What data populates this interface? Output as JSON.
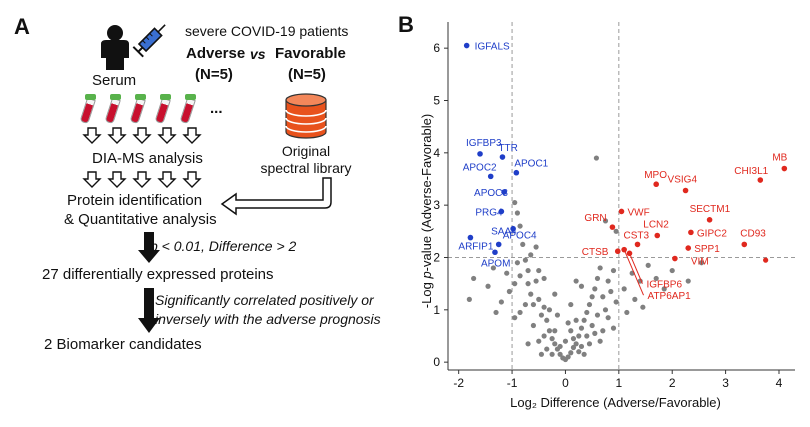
{
  "panel_a": {
    "letter": "A",
    "patients_title": "severe COVID-19 patients",
    "adverse_label": "Adverse",
    "vs_label": "vs",
    "favorable_label": "Favorable",
    "adverse_n": "(N=5)",
    "favorable_n": "(N=5)",
    "serum_label": "Serum",
    "ellipsis": "...",
    "library_label_line1": "Original",
    "library_label_line2": "spectral library",
    "step_dia": "DIA-MS analysis",
    "step_protein_id": "Protein identification",
    "step_quant": "& Quantitative analysis",
    "criteria1": "p < 0.01, Difference > 2",
    "result1": "27 differentially expressed proteins",
    "criteria2_line1": "Significantly correlated positively or",
    "criteria2_line2": "inversely with the adverse prognosis",
    "result2": "2 Biomarker candidates"
  },
  "panel_b": {
    "letter": "B"
  },
  "chart_data": {
    "type": "scatter",
    "xlabel": "Log₂ Difference (Adverse/Favorable)",
    "ylabel_prefix": "-Log ",
    "ylabel_italic": "p",
    "ylabel_suffix": "-value (Adverse-Favorable)",
    "xlim": [
      -2.2,
      4.3
    ],
    "ylim": [
      -0.15,
      6.5
    ],
    "xticks": [
      "-2",
      "-1",
      "0",
      "1",
      "2",
      "3",
      "4"
    ],
    "yticks": [
      "0",
      "1",
      "2",
      "3",
      "4",
      "5",
      "6"
    ],
    "thresholds": {
      "x": [
        -1,
        1
      ],
      "y": [
        2
      ]
    },
    "colors": {
      "down": "#1f3ec8",
      "up": "#e0281e",
      "ns": "#808080",
      "guide": "#9a9a9a"
    },
    "labeled_points": [
      {
        "label": "IGFALS",
        "x": -1.85,
        "y": 6.05,
        "group": "down"
      },
      {
        "label": "IGFBP3",
        "x": -1.6,
        "y": 3.98,
        "group": "down"
      },
      {
        "label": "TTR",
        "x": -1.18,
        "y": 3.92,
        "group": "down"
      },
      {
        "label": "APOC2",
        "x": -1.4,
        "y": 3.55,
        "group": "down"
      },
      {
        "label": "APOC1",
        "x": -0.92,
        "y": 3.62,
        "group": "down"
      },
      {
        "label": "APOC3",
        "x": -1.15,
        "y": 3.25,
        "group": "down"
      },
      {
        "label": "PRG4",
        "x": -1.2,
        "y": 2.88,
        "group": "down"
      },
      {
        "label": "SAA4",
        "x": -0.98,
        "y": 2.55,
        "group": "down"
      },
      {
        "label": "ARFIP1",
        "x": -1.78,
        "y": 2.38,
        "group": "down"
      },
      {
        "label": "APOC4",
        "x": -1.25,
        "y": 2.25,
        "group": "down"
      },
      {
        "label": "APOM",
        "x": -1.32,
        "y": 2.1,
        "group": "down"
      },
      {
        "label": "MB",
        "x": 4.1,
        "y": 3.7,
        "group": "up"
      },
      {
        "label": "CHI3L1",
        "x": 3.65,
        "y": 3.48,
        "group": "up"
      },
      {
        "label": "MPO",
        "x": 1.7,
        "y": 3.4,
        "group": "up"
      },
      {
        "label": "VSIG4",
        "x": 2.25,
        "y": 3.28,
        "group": "up"
      },
      {
        "label": "VWF",
        "x": 1.05,
        "y": 2.88,
        "group": "up"
      },
      {
        "label": "SECTM1",
        "x": 2.7,
        "y": 2.72,
        "group": "up"
      },
      {
        "label": "GRN",
        "x": 0.88,
        "y": 2.58,
        "group": "up"
      },
      {
        "label": "LCN2",
        "x": 1.72,
        "y": 2.42,
        "group": "up"
      },
      {
        "label": "GIPC2",
        "x": 2.35,
        "y": 2.48,
        "group": "up"
      },
      {
        "label": "CST3",
        "x": 1.35,
        "y": 2.25,
        "group": "up"
      },
      {
        "label": "CD93",
        "x": 3.35,
        "y": 2.25,
        "group": "up"
      },
      {
        "label": "SPP1",
        "x": 2.3,
        "y": 2.18,
        "group": "up"
      },
      {
        "label": "CTSB",
        "x": 0.98,
        "y": 2.12,
        "group": "up"
      },
      {
        "label": "VIM",
        "x": 2.05,
        "y": 1.98,
        "group": "up"
      },
      {
        "label": "IGFBP6",
        "x": 1.2,
        "y": 2.08,
        "group": "up"
      },
      {
        "label": "ATP6AP1",
        "x": 1.1,
        "y": 2.15,
        "group": "up"
      }
    ],
    "unlabeled_up_points": [
      {
        "x": 3.75,
        "y": 1.95
      }
    ],
    "ns_points": [
      [
        -1.72,
        1.6
      ],
      [
        -1.8,
        1.2
      ],
      [
        -1.45,
        1.45
      ],
      [
        -1.35,
        1.8
      ],
      [
        -1.1,
        1.7
      ],
      [
        -1.05,
        1.35
      ],
      [
        -0.95,
        1.5
      ],
      [
        -0.9,
        1.9
      ],
      [
        -0.85,
        1.65
      ],
      [
        -0.8,
        2.25
      ],
      [
        -0.85,
        2.6
      ],
      [
        -0.95,
        3.05
      ],
      [
        -0.9,
        2.85
      ],
      [
        -0.75,
        1.95
      ],
      [
        -0.7,
        1.75
      ],
      [
        -0.7,
        1.5
      ],
      [
        -0.65,
        1.3
      ],
      [
        -0.6,
        1.1
      ],
      [
        -0.55,
        1.55
      ],
      [
        -0.5,
        1.2
      ],
      [
        -0.45,
        0.9
      ],
      [
        -0.4,
        1.05
      ],
      [
        -0.35,
        0.8
      ],
      [
        -0.3,
        0.6
      ],
      [
        -0.25,
        0.45
      ],
      [
        -0.2,
        0.35
      ],
      [
        -0.15,
        0.25
      ],
      [
        -0.1,
        0.15
      ],
      [
        -0.05,
        0.08
      ],
      [
        0.0,
        0.05
      ],
      [
        0.05,
        0.1
      ],
      [
        0.1,
        0.18
      ],
      [
        0.15,
        0.28
      ],
      [
        0.2,
        0.35
      ],
      [
        0.25,
        0.5
      ],
      [
        0.3,
        0.65
      ],
      [
        0.35,
        0.8
      ],
      [
        0.4,
        0.95
      ],
      [
        0.45,
        1.1
      ],
      [
        0.5,
        1.25
      ],
      [
        0.55,
        1.4
      ],
      [
        0.6,
        1.6
      ],
      [
        0.65,
        1.8
      ],
      [
        0.7,
        1.25
      ],
      [
        0.75,
        1.0
      ],
      [
        0.8,
        1.55
      ],
      [
        0.85,
        1.35
      ],
      [
        0.9,
        1.75
      ],
      [
        0.95,
        1.15
      ],
      [
        0.58,
        3.9
      ],
      [
        -0.5,
        1.75
      ],
      [
        -0.3,
        1.0
      ],
      [
        -0.6,
        0.7
      ],
      [
        -0.4,
        0.5
      ],
      [
        -0.2,
        0.6
      ],
      [
        0.0,
        0.4
      ],
      [
        0.1,
        0.6
      ],
      [
        0.2,
        0.8
      ],
      [
        0.3,
        0.3
      ],
      [
        0.4,
        0.5
      ],
      [
        0.5,
        0.7
      ],
      [
        0.6,
        0.9
      ],
      [
        0.7,
        0.6
      ],
      [
        -0.75,
        1.1
      ],
      [
        -0.85,
        0.95
      ],
      [
        -0.5,
        0.4
      ],
      [
        -0.1,
        0.3
      ],
      [
        0.15,
        0.45
      ],
      [
        0.25,
        0.2
      ],
      [
        0.35,
        0.15
      ],
      [
        -0.35,
        0.25
      ],
      [
        -0.25,
        0.15
      ],
      [
        0.45,
        0.35
      ],
      [
        0.55,
        0.55
      ],
      [
        0.65,
        0.4
      ],
      [
        -0.65,
        2.05
      ],
      [
        -0.55,
        2.2
      ],
      [
        -1.2,
        1.15
      ],
      [
        -1.3,
        0.95
      ],
      [
        -0.95,
        0.85
      ],
      [
        -0.7,
        0.35
      ],
      [
        -0.45,
        0.15
      ],
      [
        0.8,
        0.85
      ],
      [
        0.9,
        0.65
      ],
      [
        1.1,
        1.4
      ],
      [
        1.25,
        1.7
      ],
      [
        1.4,
        1.55
      ],
      [
        1.55,
        1.85
      ],
      [
        1.3,
        1.2
      ],
      [
        1.7,
        1.6
      ],
      [
        1.85,
        1.4
      ],
      [
        2.0,
        1.75
      ],
      [
        2.3,
        1.55
      ],
      [
        2.55,
        1.9
      ],
      [
        1.15,
        0.95
      ],
      [
        1.45,
        1.05
      ],
      [
        0.95,
        2.5
      ],
      [
        0.75,
        2.7
      ],
      [
        -0.2,
        1.3
      ],
      [
        0.1,
        1.1
      ],
      [
        0.3,
        1.45
      ],
      [
        -0.15,
        0.9
      ],
      [
        0.2,
        1.55
      ],
      [
        -0.4,
        1.6
      ],
      [
        0.05,
        0.75
      ]
    ]
  }
}
